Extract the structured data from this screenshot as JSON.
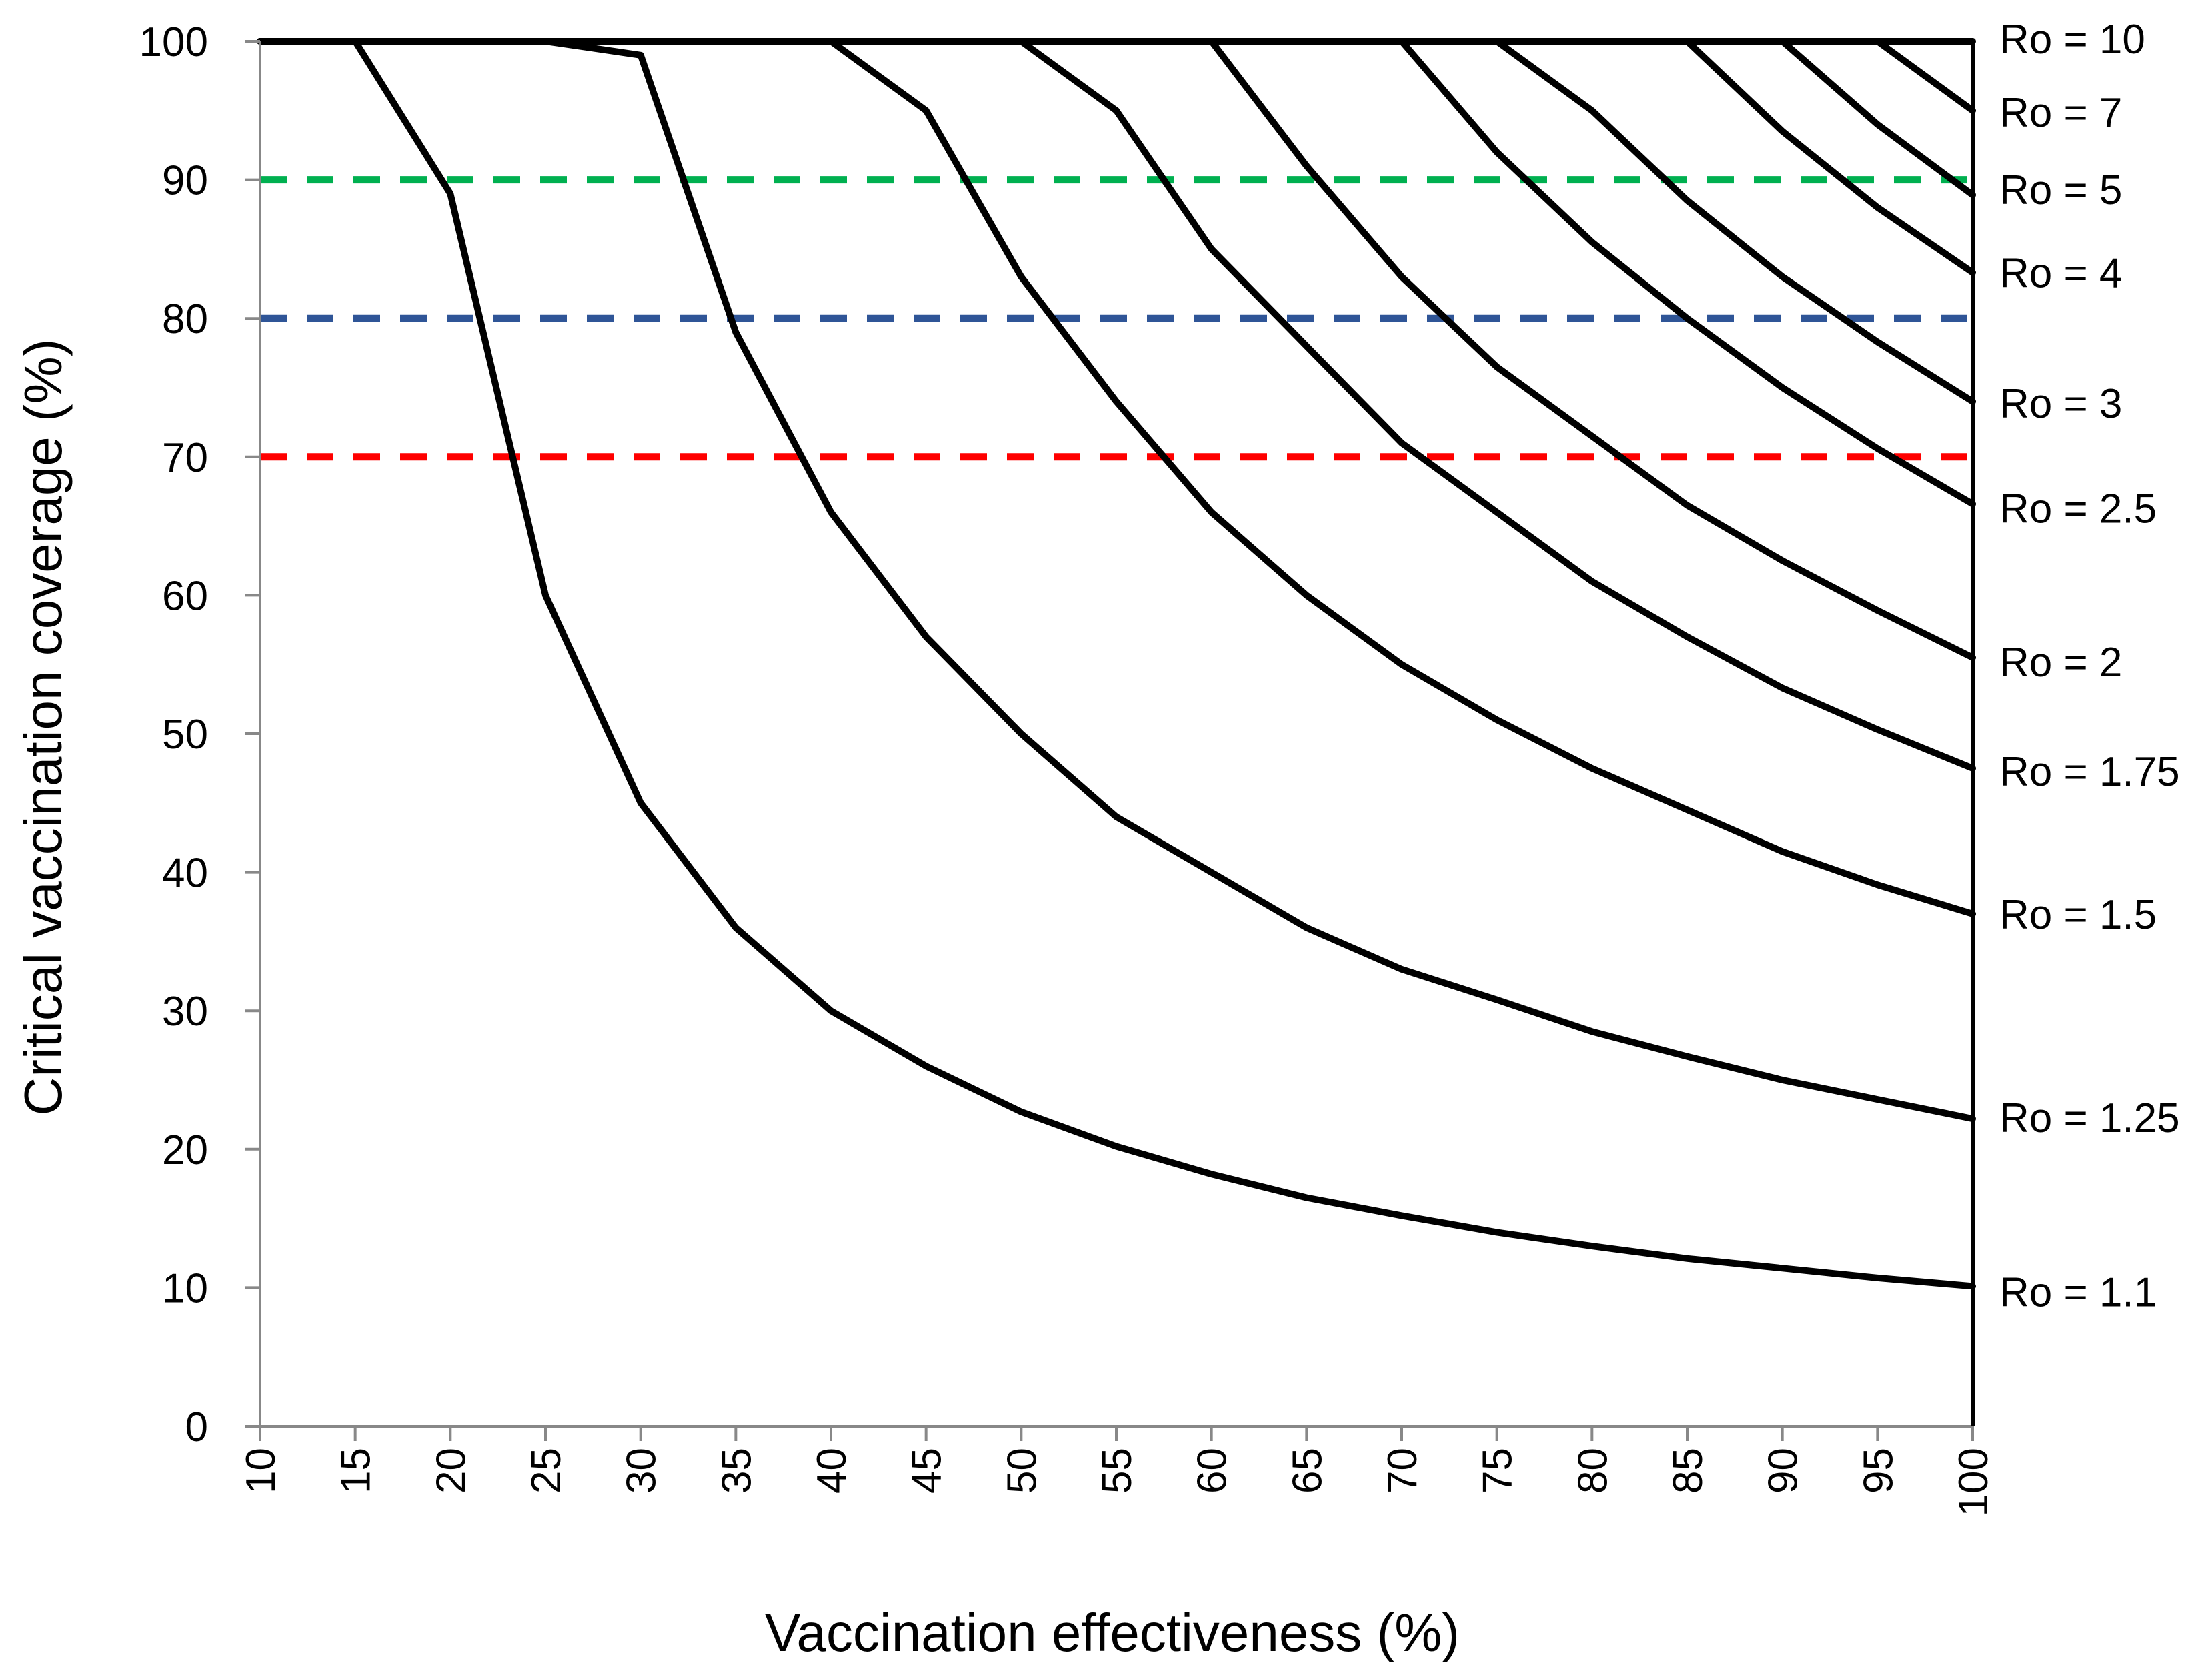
{
  "chart_data": {
    "type": "line",
    "xlabel": "Vaccination effectiveness (%)",
    "ylabel": "Critical vaccination coverage (%)",
    "xlim": [
      10,
      100
    ],
    "ylim": [
      0,
      100
    ],
    "x_ticks": [
      10,
      15,
      20,
      25,
      30,
      35,
      40,
      45,
      50,
      55,
      60,
      65,
      70,
      75,
      80,
      85,
      90,
      95,
      100
    ],
    "y_ticks": [
      0,
      10,
      20,
      30,
      40,
      50,
      60,
      70,
      80,
      90,
      100
    ],
    "grid": false,
    "x": [
      10,
      15,
      20,
      25,
      30,
      35,
      40,
      45,
      50,
      55,
      60,
      65,
      70,
      75,
      80,
      85,
      90,
      95,
      100
    ],
    "series": [
      {
        "name": "Ro = 1.1",
        "label": "Ro = 1.1",
        "values": [
          100,
          100,
          89,
          60,
          45,
          36,
          30,
          26,
          22.7,
          20.2,
          18.2,
          16.5,
          15.2,
          14,
          13,
          12.1,
          11.4,
          10.7,
          10.1
        ]
      },
      {
        "name": "Ro = 1.25",
        "label": "Ro = 1.25",
        "values": [
          100,
          100,
          100,
          100,
          99,
          79,
          66,
          57,
          50,
          44,
          40,
          36,
          33,
          30.8,
          28.5,
          26.7,
          25,
          23.6,
          22.2
        ]
      },
      {
        "name": "Ro = 1.5",
        "label": "Ro = 1.5",
        "values": [
          100,
          100,
          100,
          100,
          100,
          100,
          100,
          95,
          83,
          74,
          66,
          60,
          55,
          51,
          47.5,
          44.5,
          41.5,
          39.1,
          37
        ]
      },
      {
        "name": "Ro = 1.75",
        "label": "Ro = 1.75",
        "values": [
          100,
          100,
          100,
          100,
          100,
          100,
          100,
          100,
          100,
          95,
          85,
          78,
          71,
          66,
          61,
          57,
          53.3,
          50.3,
          47.5
        ]
      },
      {
        "name": "Ro = 2",
        "label": "Ro = 2",
        "values": [
          100,
          100,
          100,
          100,
          100,
          100,
          100,
          100,
          100,
          100,
          100,
          91,
          83,
          76.5,
          71.5,
          66.5,
          62.5,
          58.9,
          55.5
        ]
      },
      {
        "name": "Ro = 2.5",
        "label": "Ro = 2.5",
        "values": [
          100,
          100,
          100,
          100,
          100,
          100,
          100,
          100,
          100,
          100,
          100,
          100,
          100,
          92,
          85.5,
          80,
          75,
          70.6,
          66.6
        ]
      },
      {
        "name": "Ro = 3",
        "label": "Ro = 3",
        "values": [
          100,
          100,
          100,
          100,
          100,
          100,
          100,
          100,
          100,
          100,
          100,
          100,
          100,
          100,
          95,
          88.5,
          83,
          78.3,
          74
        ]
      },
      {
        "name": "Ro = 4",
        "label": "Ro = 4",
        "values": [
          100,
          100,
          100,
          100,
          100,
          100,
          100,
          100,
          100,
          100,
          100,
          100,
          100,
          100,
          100,
          100,
          93.5,
          88,
          83.3
        ]
      },
      {
        "name": "Ro = 5",
        "label": "Ro = 5",
        "values": [
          100,
          100,
          100,
          100,
          100,
          100,
          100,
          100,
          100,
          100,
          100,
          100,
          100,
          100,
          100,
          100,
          100,
          94,
          88.9
        ]
      },
      {
        "name": "Ro = 7",
        "label": "Ro = 7",
        "values": [
          100,
          100,
          100,
          100,
          100,
          100,
          100,
          100,
          100,
          100,
          100,
          100,
          100,
          100,
          100,
          100,
          100,
          100,
          95
        ]
      },
      {
        "name": "Ro = 10",
        "label": "Ro = 10",
        "values": [
          100,
          100,
          100,
          100,
          100,
          100,
          100,
          100,
          100,
          100,
          100,
          100,
          100,
          100,
          100,
          100,
          100,
          100,
          100
        ]
      }
    ],
    "reference_lines": [
      {
        "name": "90% threshold",
        "y": 90,
        "color": "#00b050",
        "style": "dashed"
      },
      {
        "name": "80% threshold",
        "y": 80,
        "color": "#2f5597",
        "style": "dashed"
      },
      {
        "name": "70% threshold",
        "y": 70,
        "color": "#ff0000",
        "style": "dashed"
      }
    ],
    "label_positions": [
      {
        "label": "Ro = 10",
        "y": 100.2
      },
      {
        "label": "Ro = 7",
        "y": 94.9
      },
      {
        "label": "Ro = 5",
        "y": 89.3
      },
      {
        "label": "Ro = 4",
        "y": 83.3
      },
      {
        "label": "Ro = 3",
        "y": 73.9
      },
      {
        "label": "Ro = 2.5",
        "y": 66.3
      },
      {
        "label": "Ro = 2",
        "y": 55.2
      },
      {
        "label": "Ro = 1.75",
        "y": 47.3
      },
      {
        "label": "Ro = 1.5",
        "y": 37
      },
      {
        "label": "Ro = 1.25",
        "y": 22.3
      },
      {
        "label": "Ro = 1.1",
        "y": 9.7
      }
    ],
    "line_color": "#000000"
  }
}
